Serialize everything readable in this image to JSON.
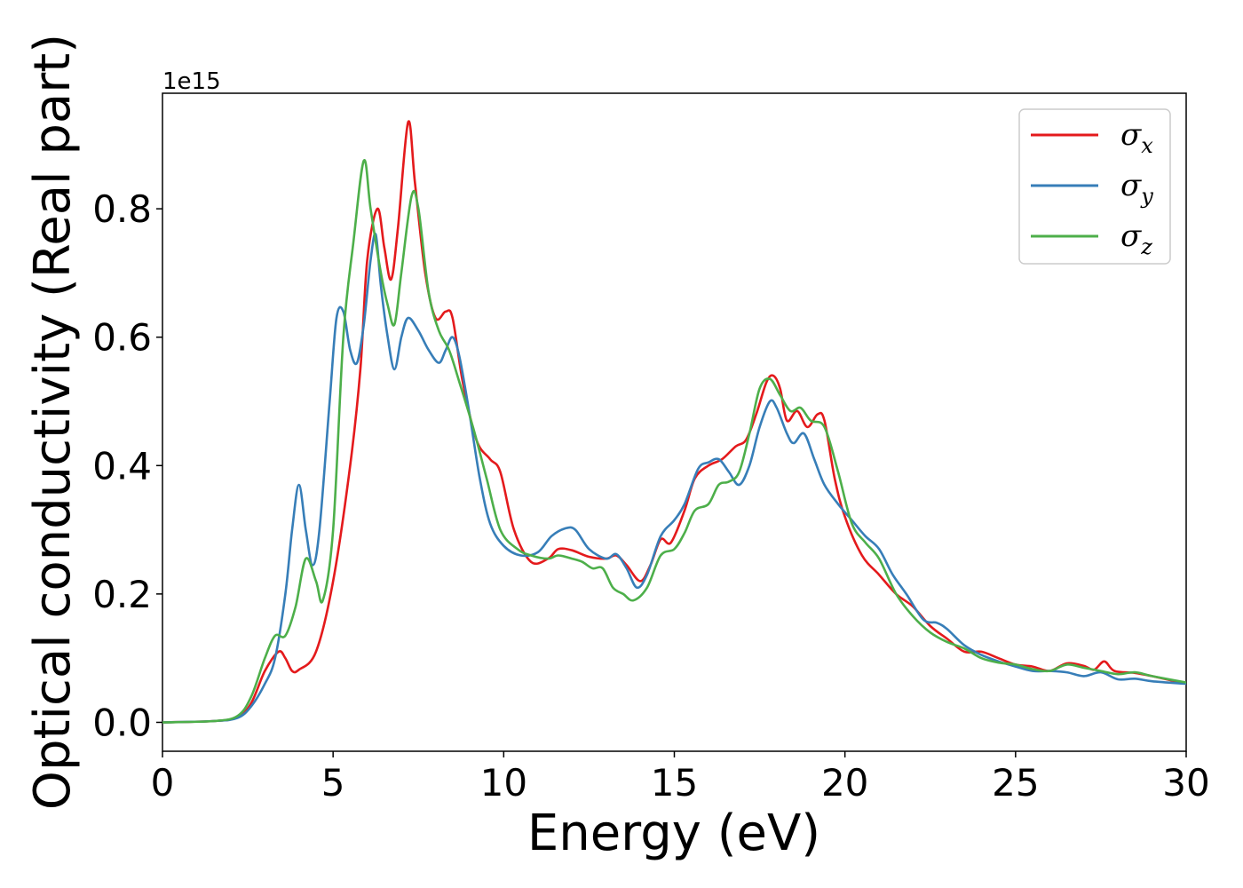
{
  "chart_data": {
    "type": "line",
    "xlabel": "Energy (eV)",
    "ylabel": "Optical conductivity (Real part)",
    "y_offset_text": "1e15",
    "xlim": [
      0,
      30
    ],
    "ylim": [
      -0.045,
      0.98
    ],
    "x_ticks": [
      0,
      5,
      10,
      15,
      20,
      25,
      30
    ],
    "x_tick_labels": [
      "0",
      "5",
      "10",
      "15",
      "20",
      "25",
      "30"
    ],
    "y_ticks": [
      0.0,
      0.2,
      0.4,
      0.6,
      0.8
    ],
    "y_tick_labels": [
      "0.0",
      "0.2",
      "0.4",
      "0.6",
      "0.8"
    ],
    "grid": false,
    "legend_position": "top-right",
    "series": [
      {
        "name": "σx",
        "legend_base": "σ",
        "legend_sub": "x",
        "color": "#e41a1c",
        "points": [
          [
            0,
            0
          ],
          [
            1.5,
            0.002
          ],
          [
            2.2,
            0.008
          ],
          [
            2.6,
            0.03
          ],
          [
            3.0,
            0.08
          ],
          [
            3.4,
            0.11
          ],
          [
            3.6,
            0.1
          ],
          [
            3.8,
            0.08
          ],
          [
            4.0,
            0.082
          ],
          [
            4.5,
            0.11
          ],
          [
            5.0,
            0.22
          ],
          [
            5.5,
            0.4
          ],
          [
            5.8,
            0.55
          ],
          [
            6.0,
            0.72
          ],
          [
            6.3,
            0.8
          ],
          [
            6.5,
            0.74
          ],
          [
            6.7,
            0.69
          ],
          [
            6.9,
            0.77
          ],
          [
            7.2,
            0.935
          ],
          [
            7.4,
            0.84
          ],
          [
            7.7,
            0.7
          ],
          [
            8.0,
            0.63
          ],
          [
            8.3,
            0.64
          ],
          [
            8.5,
            0.63
          ],
          [
            8.8,
            0.53
          ],
          [
            9.2,
            0.44
          ],
          [
            9.6,
            0.41
          ],
          [
            9.9,
            0.39
          ],
          [
            10.3,
            0.3
          ],
          [
            10.8,
            0.25
          ],
          [
            11.3,
            0.255
          ],
          [
            11.6,
            0.27
          ],
          [
            12.0,
            0.268
          ],
          [
            12.5,
            0.258
          ],
          [
            13.0,
            0.255
          ],
          [
            13.3,
            0.26
          ],
          [
            13.6,
            0.245
          ],
          [
            14.0,
            0.22
          ],
          [
            14.3,
            0.245
          ],
          [
            14.6,
            0.285
          ],
          [
            14.9,
            0.28
          ],
          [
            15.3,
            0.33
          ],
          [
            15.6,
            0.38
          ],
          [
            16.0,
            0.4
          ],
          [
            16.4,
            0.41
          ],
          [
            16.8,
            0.43
          ],
          [
            17.1,
            0.44
          ],
          [
            17.4,
            0.48
          ],
          [
            17.7,
            0.53
          ],
          [
            17.9,
            0.54
          ],
          [
            18.1,
            0.52
          ],
          [
            18.3,
            0.47
          ],
          [
            18.6,
            0.485
          ],
          [
            18.9,
            0.46
          ],
          [
            19.2,
            0.48
          ],
          [
            19.4,
            0.47
          ],
          [
            19.7,
            0.38
          ],
          [
            20.0,
            0.32
          ],
          [
            20.5,
            0.26
          ],
          [
            21.0,
            0.23
          ],
          [
            21.5,
            0.2
          ],
          [
            22.0,
            0.18
          ],
          [
            22.5,
            0.15
          ],
          [
            23.0,
            0.13
          ],
          [
            23.5,
            0.11
          ],
          [
            24.0,
            0.11
          ],
          [
            24.5,
            0.1
          ],
          [
            25.0,
            0.09
          ],
          [
            25.5,
            0.087
          ],
          [
            26.0,
            0.08
          ],
          [
            26.5,
            0.092
          ],
          [
            27.0,
            0.088
          ],
          [
            27.3,
            0.082
          ],
          [
            27.6,
            0.095
          ],
          [
            27.9,
            0.08
          ],
          [
            28.5,
            0.077
          ],
          [
            29.0,
            0.072
          ],
          [
            30,
            0.06
          ]
        ]
      },
      {
        "name": "σy",
        "legend_base": "σ",
        "legend_sub": "y",
        "color": "#377eb8",
        "points": [
          [
            0,
            0
          ],
          [
            1.5,
            0.002
          ],
          [
            2.2,
            0.007
          ],
          [
            2.6,
            0.025
          ],
          [
            3.0,
            0.06
          ],
          [
            3.3,
            0.1
          ],
          [
            3.6,
            0.2
          ],
          [
            3.8,
            0.3
          ],
          [
            4.0,
            0.37
          ],
          [
            4.2,
            0.3
          ],
          [
            4.4,
            0.245
          ],
          [
            4.6,
            0.3
          ],
          [
            4.9,
            0.5
          ],
          [
            5.1,
            0.63
          ],
          [
            5.3,
            0.64
          ],
          [
            5.5,
            0.58
          ],
          [
            5.7,
            0.56
          ],
          [
            5.9,
            0.62
          ],
          [
            6.1,
            0.72
          ],
          [
            6.25,
            0.76
          ],
          [
            6.4,
            0.68
          ],
          [
            6.6,
            0.6
          ],
          [
            6.8,
            0.55
          ],
          [
            7.0,
            0.6
          ],
          [
            7.2,
            0.63
          ],
          [
            7.5,
            0.61
          ],
          [
            7.8,
            0.58
          ],
          [
            8.1,
            0.56
          ],
          [
            8.3,
            0.58
          ],
          [
            8.5,
            0.6
          ],
          [
            8.7,
            0.57
          ],
          [
            9.0,
            0.48
          ],
          [
            9.3,
            0.38
          ],
          [
            9.6,
            0.31
          ],
          [
            10.0,
            0.275
          ],
          [
            10.5,
            0.26
          ],
          [
            11.0,
            0.265
          ],
          [
            11.4,
            0.29
          ],
          [
            11.8,
            0.302
          ],
          [
            12.1,
            0.3
          ],
          [
            12.5,
            0.27
          ],
          [
            13.0,
            0.255
          ],
          [
            13.3,
            0.262
          ],
          [
            13.6,
            0.24
          ],
          [
            13.9,
            0.21
          ],
          [
            14.2,
            0.23
          ],
          [
            14.6,
            0.29
          ],
          [
            15.0,
            0.315
          ],
          [
            15.3,
            0.34
          ],
          [
            15.7,
            0.395
          ],
          [
            16.0,
            0.405
          ],
          [
            16.3,
            0.41
          ],
          [
            16.6,
            0.39
          ],
          [
            16.9,
            0.37
          ],
          [
            17.2,
            0.4
          ],
          [
            17.5,
            0.46
          ],
          [
            17.8,
            0.5
          ],
          [
            18.0,
            0.49
          ],
          [
            18.3,
            0.45
          ],
          [
            18.5,
            0.435
          ],
          [
            18.8,
            0.45
          ],
          [
            19.1,
            0.41
          ],
          [
            19.4,
            0.37
          ],
          [
            19.8,
            0.34
          ],
          [
            20.2,
            0.315
          ],
          [
            20.6,
            0.29
          ],
          [
            21.0,
            0.27
          ],
          [
            21.4,
            0.23
          ],
          [
            21.8,
            0.2
          ],
          [
            22.3,
            0.16
          ],
          [
            22.7,
            0.155
          ],
          [
            23.0,
            0.145
          ],
          [
            23.5,
            0.12
          ],
          [
            24.0,
            0.105
          ],
          [
            24.5,
            0.095
          ],
          [
            25.0,
            0.087
          ],
          [
            25.5,
            0.08
          ],
          [
            26.0,
            0.08
          ],
          [
            26.5,
            0.078
          ],
          [
            27.0,
            0.072
          ],
          [
            27.5,
            0.078
          ],
          [
            28.0,
            0.067
          ],
          [
            28.5,
            0.068
          ],
          [
            29.0,
            0.064
          ],
          [
            30,
            0.06
          ]
        ]
      },
      {
        "name": "σz",
        "legend_base": "σ",
        "legend_sub": "z",
        "color": "#4daf4a",
        "points": [
          [
            0,
            0
          ],
          [
            1.5,
            0.002
          ],
          [
            2.2,
            0.01
          ],
          [
            2.6,
            0.04
          ],
          [
            3.0,
            0.1
          ],
          [
            3.3,
            0.135
          ],
          [
            3.6,
            0.135
          ],
          [
            3.9,
            0.18
          ],
          [
            4.2,
            0.255
          ],
          [
            4.5,
            0.22
          ],
          [
            4.7,
            0.19
          ],
          [
            5.0,
            0.3
          ],
          [
            5.3,
            0.6
          ],
          [
            5.6,
            0.75
          ],
          [
            5.9,
            0.875
          ],
          [
            6.1,
            0.8
          ],
          [
            6.4,
            0.7
          ],
          [
            6.6,
            0.65
          ],
          [
            6.8,
            0.62
          ],
          [
            7.0,
            0.7
          ],
          [
            7.3,
            0.82
          ],
          [
            7.5,
            0.8
          ],
          [
            7.8,
            0.67
          ],
          [
            8.1,
            0.61
          ],
          [
            8.4,
            0.58
          ],
          [
            8.7,
            0.53
          ],
          [
            9.1,
            0.46
          ],
          [
            9.5,
            0.38
          ],
          [
            9.9,
            0.3
          ],
          [
            10.4,
            0.27
          ],
          [
            10.8,
            0.26
          ],
          [
            11.3,
            0.255
          ],
          [
            11.6,
            0.26
          ],
          [
            12.0,
            0.255
          ],
          [
            12.3,
            0.25
          ],
          [
            12.6,
            0.24
          ],
          [
            12.9,
            0.24
          ],
          [
            13.2,
            0.21
          ],
          [
            13.5,
            0.2
          ],
          [
            13.8,
            0.19
          ],
          [
            14.2,
            0.21
          ],
          [
            14.6,
            0.26
          ],
          [
            15.0,
            0.27
          ],
          [
            15.3,
            0.295
          ],
          [
            15.6,
            0.33
          ],
          [
            16.0,
            0.34
          ],
          [
            16.3,
            0.37
          ],
          [
            16.6,
            0.375
          ],
          [
            16.9,
            0.39
          ],
          [
            17.2,
            0.45
          ],
          [
            17.5,
            0.52
          ],
          [
            17.8,
            0.535
          ],
          [
            18.1,
            0.51
          ],
          [
            18.4,
            0.485
          ],
          [
            18.7,
            0.49
          ],
          [
            19.0,
            0.47
          ],
          [
            19.4,
            0.46
          ],
          [
            19.8,
            0.39
          ],
          [
            20.2,
            0.31
          ],
          [
            20.6,
            0.28
          ],
          [
            21.0,
            0.255
          ],
          [
            21.5,
            0.2
          ],
          [
            22.0,
            0.165
          ],
          [
            22.5,
            0.14
          ],
          [
            23.0,
            0.125
          ],
          [
            23.5,
            0.115
          ],
          [
            24.0,
            0.1
          ],
          [
            24.5,
            0.093
          ],
          [
            25.0,
            0.09
          ],
          [
            25.5,
            0.083
          ],
          [
            26.0,
            0.08
          ],
          [
            26.5,
            0.09
          ],
          [
            27.0,
            0.085
          ],
          [
            27.5,
            0.08
          ],
          [
            28.0,
            0.075
          ],
          [
            28.5,
            0.078
          ],
          [
            29.0,
            0.072
          ],
          [
            30,
            0.062
          ]
        ]
      }
    ]
  }
}
